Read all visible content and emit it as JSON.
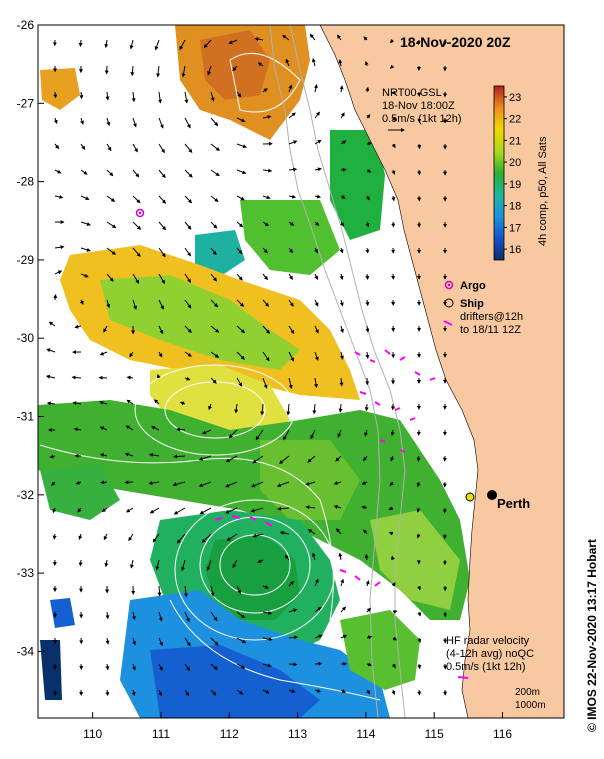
{
  "title": "18-Nov-2020 20Z",
  "product": {
    "line1": "NRT00 GSL",
    "line2": "18-Nov 18:00Z",
    "line3": "0.5m/s (1kt 12h)"
  },
  "colorbar": {
    "label": "4h comp, p50, All Sats",
    "min": 15.5,
    "max": 23.5,
    "ticks": [
      "16",
      "17",
      "18",
      "19",
      "20",
      "21",
      "22",
      "23"
    ]
  },
  "axes": {
    "x_ticks": [
      "110",
      "111",
      "112",
      "113",
      "114",
      "115",
      "116"
    ],
    "y_ticks": [
      "-26",
      "-27",
      "-28",
      "-29",
      "-30",
      "-31",
      "-32",
      "-33",
      "-34"
    ],
    "lon_range": [
      109.2,
      116.9
    ],
    "lat_range": [
      -34.85,
      -26.0
    ]
  },
  "legend": {
    "argo": "Argo",
    "ship": "Ship",
    "drifters_line1": "drifters@12h",
    "drifters_line2": "to 18/11 12Z"
  },
  "places": {
    "perth": "Perth"
  },
  "hf_radar": {
    "line1": "HF radar velocity",
    "line2": "(4-12h avg) noQC",
    "line3": "0.5m/s (1kt 12h)"
  },
  "depth_legend": {
    "line1": "200m",
    "line2": "1000m"
  },
  "credit": "©  IMOS 22-Nov-2020 13:17 Hobart",
  "colors": {
    "land": "#f8c8a0",
    "argo": "#cc00cc",
    "drifter": "#ff00ff",
    "contour": "#ffffff",
    "bathymetry": "#b0b0b0"
  }
}
